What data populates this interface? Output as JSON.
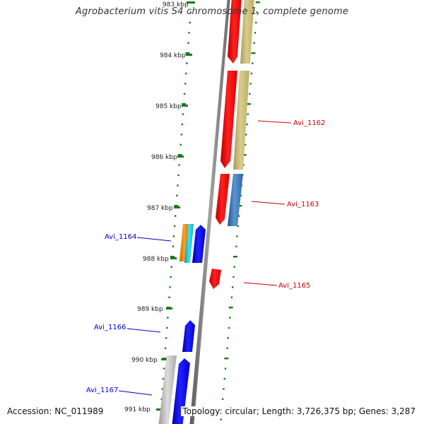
{
  "title": "Agrobacterium vitis S4 chromosome 1, complete genome",
  "accession": "Accession: NC_011989",
  "footer": "Topology: circular; Length: 3,726,375 bp; Genes: 3,287",
  "colors": {
    "backbone": "#7a7a7a",
    "tick": "#1a7a1a",
    "label_right": "#cc0000",
    "label_left": "#0000cc",
    "red": "#ff0000",
    "blue": "#0000ee",
    "khaki": "#c8bd7a",
    "steelblue": "#3a78b8",
    "orange": "#ff8800",
    "cyan": "#22c8d8",
    "gray": "#c0c0c0"
  },
  "scale_labels": [
    {
      "kbp": 983,
      "text": "983 kbp"
    },
    {
      "kbp": 984,
      "text": "984 kbp"
    },
    {
      "kbp": 985,
      "text": "985 kbp"
    },
    {
      "kbp": 986,
      "text": "986 kbp"
    },
    {
      "kbp": 987,
      "text": "987 kbp"
    },
    {
      "kbp": 988,
      "text": "988 kbp"
    },
    {
      "kbp": 989,
      "text": "989 kbp"
    },
    {
      "kbp": 990,
      "text": "990 kbp"
    },
    {
      "kbp": 991,
      "text": "991 kbp"
    }
  ],
  "gene_labels": [
    {
      "name": "Avi_1162",
      "side": "right"
    },
    {
      "name": "Avi_1163",
      "side": "right"
    },
    {
      "name": "Avi_1164",
      "side": "left"
    },
    {
      "name": "Avi_1165",
      "side": "right"
    },
    {
      "name": "Avi_1166",
      "side": "left"
    },
    {
      "name": "Avi_1167",
      "side": "left"
    }
  ]
}
